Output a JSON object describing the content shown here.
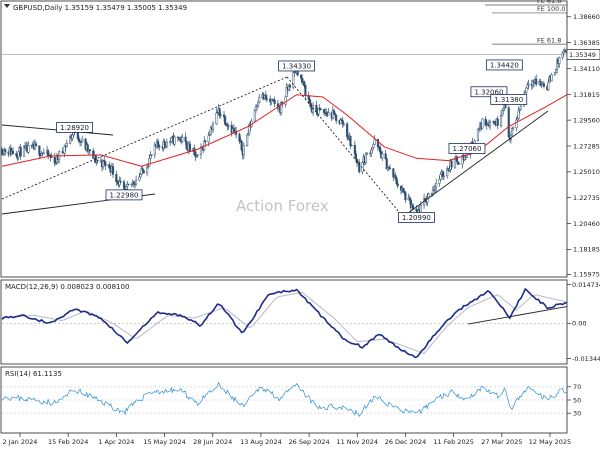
{
  "header": {
    "title": "GBPUSD,Daily  1.35159 1.35479 1.35005 1.35349"
  },
  "watermark": "Action Forex",
  "colors": {
    "candle": "#2e4f6e",
    "ma": "#e0221f",
    "macd_line": "#1f2a8a",
    "macd_signal": "#b8b8c8",
    "rsi_line": "#2a8fd6",
    "trend": "#222222"
  },
  "chart_data": [
    {
      "type": "candlestick",
      "title": "GBPUSD,Daily  1.35159 1.35479 1.35005 1.35349",
      "x_ticks": [
        "2 Jan 2024",
        "15 Feb 2024",
        "1 Apr 2024",
        "15 May 2024",
        "28 Jun 2024",
        "13 Aug 2024",
        "26 Sep 2024",
        "11 Nov 2024",
        "26 Dec 2024",
        "11 Feb 2025",
        "27 Mar 2025",
        "12 May 2025"
      ],
      "xlim": [
        "2024-01-02",
        "2025-05-30"
      ],
      "ylim": [
        1.1575,
        1.4005
      ],
      "y_ticks": [
        1.3866,
        1.36385,
        1.3411,
        1.31815,
        1.2956,
        1.27285,
        1.2501,
        1.22735,
        1.2046,
        1.18185,
        1.15975
      ],
      "last_price": "1.35349",
      "fe_levels": [
        {
          "label": "FE 61.8",
          "value": 1.4032
        },
        {
          "label": "FE 100.0",
          "value": 1.39
        },
        {
          "label": "FE 61.8",
          "value": 1.3625
        }
      ],
      "level_labels": [
        {
          "text": "1.28920",
          "date": "2024-03-08",
          "value": 1.2892
        },
        {
          "text": "1.22980",
          "date": "2024-04-22",
          "value": 1.2298
        },
        {
          "text": "1.34330",
          "date": "2024-09-26",
          "value": 1.3433
        },
        {
          "text": "1.20990",
          "date": "2025-01-13",
          "value": 1.2099
        },
        {
          "text": "1.27060",
          "date": "2025-02-28",
          "value": 1.2706
        },
        {
          "text": "1.32060",
          "date": "2025-03-20",
          "value": 1.3206
        },
        {
          "text": "1.31380",
          "date": "2025-04-07",
          "value": 1.3138
        },
        {
          "text": "1.34420",
          "date": "2025-04-03",
          "value": 1.3442
        }
      ],
      "price_anchors": [
        [
          "2024-01-02",
          1.27
        ],
        [
          "2024-01-15",
          1.267
        ],
        [
          "2024-02-01",
          1.271
        ],
        [
          "2024-02-20",
          1.26
        ],
        [
          "2024-03-08",
          1.286
        ],
        [
          "2024-03-25",
          1.262
        ],
        [
          "2024-04-10",
          1.254
        ],
        [
          "2024-04-22",
          1.232
        ],
        [
          "2024-05-08",
          1.249
        ],
        [
          "2024-05-22",
          1.273
        ],
        [
          "2024-06-12",
          1.28
        ],
        [
          "2024-06-28",
          1.262
        ],
        [
          "2024-07-17",
          1.304
        ],
        [
          "2024-08-01",
          1.284
        ],
        [
          "2024-08-08",
          1.269
        ],
        [
          "2024-08-23",
          1.318
        ],
        [
          "2024-09-11",
          1.306
        ],
        [
          "2024-09-26",
          1.342
        ],
        [
          "2024-10-10",
          1.305
        ],
        [
          "2024-10-29",
          1.3
        ],
        [
          "2024-11-08",
          1.292
        ],
        [
          "2024-11-22",
          1.254
        ],
        [
          "2024-12-06",
          1.276
        ],
        [
          "2024-12-20",
          1.251
        ],
        [
          "2025-01-13",
          1.212
        ],
        [
          "2025-01-31",
          1.24
        ],
        [
          "2025-02-14",
          1.258
        ],
        [
          "2025-02-28",
          1.264
        ],
        [
          "2025-03-14",
          1.294
        ],
        [
          "2025-03-28",
          1.294
        ],
        [
          "2025-04-03",
          1.313
        ],
        [
          "2025-04-08",
          1.278
        ],
        [
          "2025-04-25",
          1.331
        ],
        [
          "2025-05-12",
          1.326
        ],
        [
          "2025-05-26",
          1.355
        ],
        [
          "2025-05-30",
          1.353
        ]
      ],
      "moving_average": [
        [
          "2024-01-02",
          1.255
        ],
        [
          "2024-02-15",
          1.264
        ],
        [
          "2024-04-01",
          1.265
        ],
        [
          "2024-05-08",
          1.255
        ],
        [
          "2024-06-28",
          1.27
        ],
        [
          "2024-08-13",
          1.29
        ],
        [
          "2024-09-26",
          1.318
        ],
        [
          "2024-10-20",
          1.316
        ],
        [
          "2024-11-11",
          1.3
        ],
        [
          "2024-12-15",
          1.272
        ],
        [
          "2025-01-13",
          1.262
        ],
        [
          "2025-02-11",
          1.26
        ],
        [
          "2025-03-10",
          1.268
        ],
        [
          "2025-04-07",
          1.29
        ],
        [
          "2025-05-12",
          1.308
        ],
        [
          "2025-05-30",
          1.318
        ]
      ]
    },
    {
      "type": "line",
      "title": "MACD(12,26,9) 0.008023 0.008100",
      "ylim": [
        -0.0155,
        0.0165
      ],
      "y_ticks": [
        0.014734,
        0.0,
        -0.013442
      ],
      "y_tick_labels": [
        "0.014734",
        "0.00",
        "-0.013442"
      ],
      "series": [
        {
          "points": [
            [
              "2024-01-02",
              0.002
            ],
            [
              "2024-01-20",
              0.003
            ],
            [
              "2024-02-15",
              0.0
            ],
            [
              "2024-03-08",
              0.0055
            ],
            [
              "2024-04-01",
              0.002
            ],
            [
              "2024-04-25",
              -0.0075
            ],
            [
              "2024-05-22",
              0.004
            ],
            [
              "2024-06-14",
              0.003
            ],
            [
              "2024-07-01",
              -0.001
            ],
            [
              "2024-07-17",
              0.008
            ],
            [
              "2024-08-08",
              -0.004
            ],
            [
              "2024-09-01",
              0.0115
            ],
            [
              "2024-09-26",
              0.0125
            ],
            [
              "2024-10-25",
              0.0
            ],
            [
              "2024-11-08",
              -0.006
            ],
            [
              "2024-11-25",
              -0.009
            ],
            [
              "2024-12-10",
              -0.004
            ],
            [
              "2024-12-26",
              -0.009
            ],
            [
              "2025-01-13",
              -0.013
            ],
            [
              "2025-02-01",
              -0.003
            ],
            [
              "2025-02-20",
              0.005
            ],
            [
              "2025-03-20",
              0.0125
            ],
            [
              "2025-04-08",
              0.002
            ],
            [
              "2025-04-22",
              0.013
            ],
            [
              "2025-05-12",
              0.006
            ],
            [
              "2025-05-30",
              0.008
            ]
          ]
        },
        {
          "points": [
            [
              "2024-01-02",
              0.0022
            ],
            [
              "2024-02-01",
              0.003
            ],
            [
              "2024-02-26",
              0.001
            ],
            [
              "2024-03-18",
              0.0048
            ],
            [
              "2024-04-12",
              0.0
            ],
            [
              "2024-05-03",
              -0.006
            ],
            [
              "2024-06-01",
              0.003
            ],
            [
              "2024-06-25",
              0.002
            ],
            [
              "2024-07-22",
              0.006
            ],
            [
              "2024-08-15",
              -0.002
            ],
            [
              "2024-09-08",
              0.01
            ],
            [
              "2024-10-01",
              0.0118
            ],
            [
              "2024-10-30",
              0.002
            ],
            [
              "2024-11-20",
              -0.007
            ],
            [
              "2024-12-15",
              -0.006
            ],
            [
              "2025-01-20",
              -0.0115
            ],
            [
              "2025-02-10",
              -0.001
            ],
            [
              "2025-03-01",
              0.006
            ],
            [
              "2025-03-28",
              0.011
            ],
            [
              "2025-04-14",
              0.005
            ],
            [
              "2025-04-30",
              0.011
            ],
            [
              "2025-05-30",
              0.0081
            ]
          ]
        }
      ],
      "trendline": [
        [
          "2025-03-01",
          -0.0003
        ],
        [
          "2025-05-30",
          0.0064
        ]
      ]
    },
    {
      "type": "line",
      "title": "RSI(14) 61.1135",
      "ylim": [
        0,
        100
      ],
      "y_ticks": [
        70,
        50,
        30
      ],
      "series": [
        {
          "points": [
            [
              "2024-01-02",
              55
            ],
            [
              "2024-02-01",
              50
            ],
            [
              "2024-02-20",
              45
            ],
            [
              "2024-03-08",
              66
            ],
            [
              "2024-04-01",
              48
            ],
            [
              "2024-04-22",
              31
            ],
            [
              "2024-05-15",
              62
            ],
            [
              "2024-06-12",
              65
            ],
            [
              "2024-06-28",
              45
            ],
            [
              "2024-07-17",
              72
            ],
            [
              "2024-08-08",
              40
            ],
            [
              "2024-08-25",
              70
            ],
            [
              "2024-09-11",
              52
            ],
            [
              "2024-09-26",
              72
            ],
            [
              "2024-10-15",
              38
            ],
            [
              "2024-11-08",
              40
            ],
            [
              "2024-11-22",
              28
            ],
            [
              "2024-12-06",
              55
            ],
            [
              "2024-12-26",
              38
            ],
            [
              "2025-01-13",
              27
            ],
            [
              "2025-01-31",
              52
            ],
            [
              "2025-02-14",
              62
            ],
            [
              "2025-03-01",
              52
            ],
            [
              "2025-03-14",
              70
            ],
            [
              "2025-03-28",
              55
            ],
            [
              "2025-04-03",
              68
            ],
            [
              "2025-04-08",
              36
            ],
            [
              "2025-04-25",
              68
            ],
            [
              "2025-05-12",
              50
            ],
            [
              "2025-05-26",
              67
            ],
            [
              "2025-05-30",
              61
            ]
          ]
        }
      ]
    }
  ]
}
